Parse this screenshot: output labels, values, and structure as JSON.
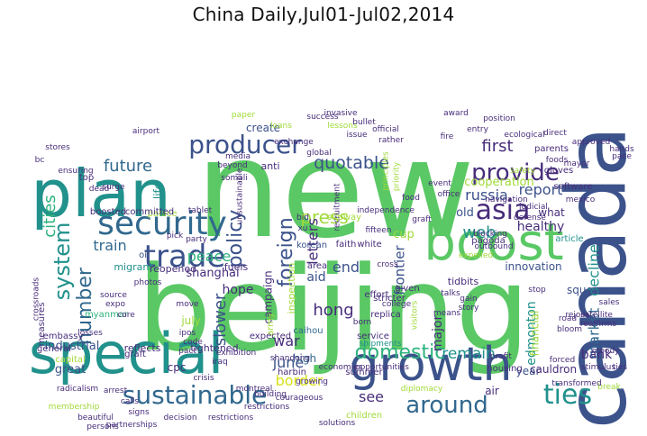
{
  "title": "China Daily,Jul01-Jul02,2014",
  "colors": {
    "green": "#5ac864",
    "teal": "#21918c",
    "navy": "#3b528b",
    "purple": "#472d7b",
    "lime": "#a0da39",
    "sea": "#2db27d",
    "yellow": "#d8e219",
    "darkblue": "#31688e"
  },
  "words": [
    {
      "text": "new",
      "color": "green"
    },
    {
      "text": "beijing",
      "color": "green"
    },
    {
      "text": "canada",
      "color": "navy"
    },
    {
      "text": "plan",
      "color": "teal"
    },
    {
      "text": "boost",
      "color": "green"
    },
    {
      "text": "special",
      "color": "teal"
    },
    {
      "text": "growth",
      "color": "navy"
    },
    {
      "text": "security",
      "color": "darkblue"
    },
    {
      "text": "trade",
      "color": "navy"
    },
    {
      "text": "producer",
      "color": "navy"
    },
    {
      "text": "provide",
      "color": "purple"
    },
    {
      "text": "asia",
      "color": "purple"
    },
    {
      "text": "sustainable",
      "color": "darkblue"
    },
    {
      "text": "around",
      "color": "darkblue"
    },
    {
      "text": "ties",
      "color": "teal"
    },
    {
      "text": "domestic",
      "color": "sea"
    },
    {
      "text": "system",
      "color": "teal"
    },
    {
      "text": "policy",
      "color": "navy"
    },
    {
      "text": "foreign",
      "color": "navy"
    },
    {
      "text": "number",
      "color": "darkblue"
    },
    {
      "text": "press",
      "color": "lime"
    },
    {
      "text": "quotable",
      "color": "navy"
    },
    {
      "text": "future",
      "color": "darkblue"
    },
    {
      "text": "train",
      "color": "darkblue"
    },
    {
      "text": "cities",
      "color": "sea"
    },
    {
      "text": "peace",
      "color": "sea"
    },
    {
      "text": "slower",
      "color": "navy"
    },
    {
      "text": "hope",
      "color": "purple"
    },
    {
      "text": "letters",
      "color": "purple"
    },
    {
      "text": "first",
      "color": "purple"
    },
    {
      "text": "report",
      "color": "navy"
    },
    {
      "text": "russia",
      "color": "navy"
    },
    {
      "text": "web",
      "color": "teal"
    },
    {
      "text": "market",
      "color": "darkblue"
    },
    {
      "text": "decline",
      "color": "teal"
    },
    {
      "text": "bank",
      "color": "purple"
    },
    {
      "text": "hong",
      "color": "purple"
    },
    {
      "text": "end",
      "color": "navy"
    },
    {
      "text": "june",
      "color": "navy"
    },
    {
      "text": "war",
      "color": "purple"
    },
    {
      "text": "remain",
      "color": "teal"
    },
    {
      "text": "see",
      "color": "purple"
    },
    {
      "text": "border",
      "color": "yellow"
    },
    {
      "text": "frontier",
      "color": "navy"
    },
    {
      "text": "major",
      "color": "purple"
    },
    {
      "text": "edmonton",
      "color": "teal"
    },
    {
      "text": "healthy",
      "color": "purple"
    },
    {
      "text": "cooperation",
      "color": "lime"
    },
    {
      "text": "innovation",
      "color": "navy"
    },
    {
      "text": "financial",
      "color": "lime"
    },
    {
      "text": "shanghai",
      "color": "purple"
    },
    {
      "text": "industrial",
      "color": "navy"
    },
    {
      "text": "campaign",
      "color": "purple"
    },
    {
      "text": "cup",
      "color": "lime"
    },
    {
      "text": "old",
      "color": "navy"
    },
    {
      "text": "aid",
      "color": "navy"
    },
    {
      "text": "high",
      "color": "darkblue"
    },
    {
      "text": "create",
      "color": "navy"
    },
    {
      "text": "life",
      "color": "teal"
    },
    {
      "text": "july",
      "color": "lime"
    },
    {
      "text": "cpc",
      "color": "purple"
    },
    {
      "text": "great",
      "color": "navy"
    },
    {
      "text": "air",
      "color": "purple"
    },
    {
      "text": "year",
      "color": "navy"
    },
    {
      "text": "what",
      "color": "purple"
    },
    {
      "text": "squeeze",
      "color": "navy"
    },
    {
      "text": "cauldron",
      "color": "purple"
    },
    {
      "text": "tidbits",
      "color": "purple"
    },
    {
      "text": "inspection",
      "color": "lime"
    },
    {
      "text": "anti",
      "color": "purple"
    },
    {
      "text": "migrant",
      "color": "teal"
    },
    {
      "text": "reopened",
      "color": "purple"
    },
    {
      "text": "fuels",
      "color": "purple"
    },
    {
      "text": "palace",
      "color": "lime"
    },
    {
      "text": "tightened",
      "color": "purple"
    },
    {
      "text": "reflects",
      "color": "purple"
    },
    {
      "text": "oil",
      "color": "navy"
    },
    {
      "text": "army",
      "color": "lime"
    },
    {
      "text": "harbin",
      "color": "purple"
    },
    {
      "text": "caihou",
      "color": "darkblue"
    },
    {
      "text": "korean",
      "color": "navy"
    },
    {
      "text": "faith",
      "color": "purple"
    },
    {
      "text": "white",
      "color": "purple"
    },
    {
      "text": "given",
      "color": "purple"
    },
    {
      "text": "area",
      "color": "purple"
    },
    {
      "text": "children",
      "color": "lime"
    },
    {
      "text": "housing",
      "color": "purple"
    },
    {
      "text": "software",
      "color": "purple"
    },
    {
      "text": "article",
      "color": "teal"
    },
    {
      "text": "parents",
      "color": "purple"
    },
    {
      "text": "embassy",
      "color": "purple"
    },
    {
      "text": "general",
      "color": "purple"
    },
    {
      "text": "capital",
      "color": "lime"
    },
    {
      "text": "myanmar",
      "color": "sea"
    },
    {
      "text": "boosted",
      "color": "purple"
    },
    {
      "text": "committed",
      "color": "purple"
    },
    {
      "text": "graft",
      "color": "purple"
    },
    {
      "text": "ensuring",
      "color": "purple"
    },
    {
      "text": "measures",
      "color": "purple"
    },
    {
      "text": "replica",
      "color": "purple"
    },
    {
      "text": "expected",
      "color": "purple"
    },
    {
      "text": "effort",
      "color": "purple"
    },
    {
      "text": "summer",
      "color": "purple"
    },
    {
      "text": "opportunities",
      "color": "purple"
    },
    {
      "text": "service",
      "color": "purple"
    },
    {
      "text": "stricter",
      "color": "purple"
    },
    {
      "text": "shipments",
      "color": "teal"
    },
    {
      "text": "subway",
      "color": "lime"
    },
    {
      "text": "pagoda",
      "color": "purple"
    },
    {
      "text": "unsustainable",
      "color": "purple"
    },
    {
      "text": "recruitment",
      "color": "purple"
    },
    {
      "text": "global",
      "color": "purple"
    },
    {
      "text": "somali",
      "color": "purple"
    },
    {
      "text": "economies",
      "color": "purple"
    },
    {
      "text": "membership",
      "color": "lime"
    },
    {
      "text": "radicalism",
      "color": "purple"
    },
    {
      "text": "diplomacy",
      "color": "lime"
    },
    {
      "text": "safety",
      "color": "lime"
    },
    {
      "text": "gloves",
      "color": "purple"
    },
    {
      "text": "rejoin",
      "color": "purple"
    },
    {
      "text": "break",
      "color": "lime"
    },
    {
      "text": "xu",
      "color": "purple"
    },
    {
      "text": "visitors",
      "color": "lime"
    },
    {
      "text": "born",
      "color": "purple"
    },
    {
      "text": "principles",
      "color": "lime"
    },
    {
      "text": "priority",
      "color": "lime"
    },
    {
      "text": "event",
      "color": "purple"
    },
    {
      "text": "bid",
      "color": "purple"
    },
    {
      "text": "cross",
      "color": "purple"
    },
    {
      "text": "crossroads",
      "color": "purple"
    },
    {
      "text": "paper",
      "color": "lime"
    },
    {
      "text": "loans",
      "color": "lime"
    },
    {
      "text": "lessons",
      "color": "lime"
    },
    {
      "text": "exchange",
      "color": "purple"
    },
    {
      "text": "media",
      "color": "purple"
    },
    {
      "text": "top",
      "color": "purple"
    },
    {
      "text": "reaffirms",
      "color": "purple"
    },
    {
      "text": "satellite",
      "color": "purple"
    },
    {
      "text": "stimulus",
      "color": "purple"
    },
    {
      "text": "forced",
      "color": "purple"
    },
    {
      "text": "mexico",
      "color": "purple"
    },
    {
      "text": "ipos",
      "color": "purple"
    },
    {
      "text": "code",
      "color": "purple"
    },
    {
      "text": "pick",
      "color": "purple"
    },
    {
      "text": "party",
      "color": "purple"
    },
    {
      "text": "move",
      "color": "purple"
    },
    {
      "text": "surge",
      "color": "purple"
    },
    {
      "text": "expelled",
      "color": "lime"
    },
    {
      "text": "tablet",
      "color": "purple"
    },
    {
      "text": "stop",
      "color": "purple"
    },
    {
      "text": "stores",
      "color": "purple"
    },
    {
      "text": "airport",
      "color": "purple"
    },
    {
      "text": "dead",
      "color": "purple"
    },
    {
      "text": "losses",
      "color": "purple"
    },
    {
      "text": "source",
      "color": "purple"
    },
    {
      "text": "expo",
      "color": "purple"
    },
    {
      "text": "core",
      "color": "purple"
    },
    {
      "text": "pact",
      "color": "purple"
    },
    {
      "text": "crisis",
      "color": "purple"
    },
    {
      "text": "iraq",
      "color": "purple"
    },
    {
      "text": "arrest",
      "color": "purple"
    },
    {
      "text": "calls",
      "color": "purple"
    },
    {
      "text": "signs",
      "color": "purple"
    },
    {
      "text": "road",
      "color": "purple"
    },
    {
      "text": "bloom",
      "color": "purple"
    },
    {
      "text": "moody",
      "color": "purple"
    },
    {
      "text": "transformed",
      "color": "purple"
    },
    {
      "text": "award",
      "color": "purple"
    },
    {
      "text": "position",
      "color": "purple"
    },
    {
      "text": "success",
      "color": "purple"
    },
    {
      "text": "restrictions",
      "color": "purple"
    },
    {
      "text": "rather",
      "color": "purple"
    },
    {
      "text": "independence",
      "color": "purple"
    },
    {
      "text": "graft",
      "color": "purple"
    },
    {
      "text": "navigation",
      "color": "purple"
    },
    {
      "text": "blocking",
      "color": "purple"
    },
    {
      "text": "outbound",
      "color": "purple"
    },
    {
      "text": "judicial",
      "color": "purple"
    },
    {
      "text": "defense",
      "color": "purple"
    },
    {
      "text": "office",
      "color": "purple"
    },
    {
      "text": "issue",
      "color": "purple"
    },
    {
      "text": "bullet",
      "color": "purple"
    },
    {
      "text": "invasive",
      "color": "purple"
    },
    {
      "text": "official",
      "color": "purple"
    },
    {
      "text": "food",
      "color": "purple"
    },
    {
      "text": "ecological",
      "color": "purple"
    },
    {
      "text": "approved",
      "color": "purple"
    },
    {
      "text": "pace",
      "color": "purple"
    },
    {
      "text": "sales",
      "color": "purple"
    },
    {
      "text": "fifteen",
      "color": "purple"
    },
    {
      "text": "courageous",
      "color": "purple"
    },
    {
      "text": "building",
      "color": "purple"
    },
    {
      "text": "growing",
      "color": "purple"
    },
    {
      "text": "beyond",
      "color": "purple"
    },
    {
      "text": "photos",
      "color": "purple"
    },
    {
      "text": "exhibition",
      "color": "purple"
    },
    {
      "text": "montreal",
      "color": "purple"
    },
    {
      "text": "shandong",
      "color": "purple"
    },
    {
      "text": "beautiful",
      "color": "purple"
    },
    {
      "text": "decision",
      "color": "purple"
    },
    {
      "text": "restrictions",
      "color": "purple"
    },
    {
      "text": "partnerships",
      "color": "purple"
    },
    {
      "text": "persons",
      "color": "purple"
    },
    {
      "text": "solutions",
      "color": "purple"
    },
    {
      "text": "college",
      "color": "purple"
    },
    {
      "text": "profit",
      "color": "purple"
    },
    {
      "text": "talks",
      "color": "purple"
    },
    {
      "text": "gain",
      "color": "purple"
    },
    {
      "text": "story",
      "color": "purple"
    },
    {
      "text": "means",
      "color": "purple"
    },
    {
      "text": "direct",
      "color": "purple"
    },
    {
      "text": "entry",
      "color": "purple"
    },
    {
      "text": "fire",
      "color": "purple"
    },
    {
      "text": "foods",
      "color": "purple"
    },
    {
      "text": "hands",
      "color": "purple"
    },
    {
      "text": "mayor",
      "color": "purple"
    },
    {
      "text": "bc",
      "color": "purple"
    },
    {
      "text": "ties",
      "color": "purple"
    }
  ]
}
